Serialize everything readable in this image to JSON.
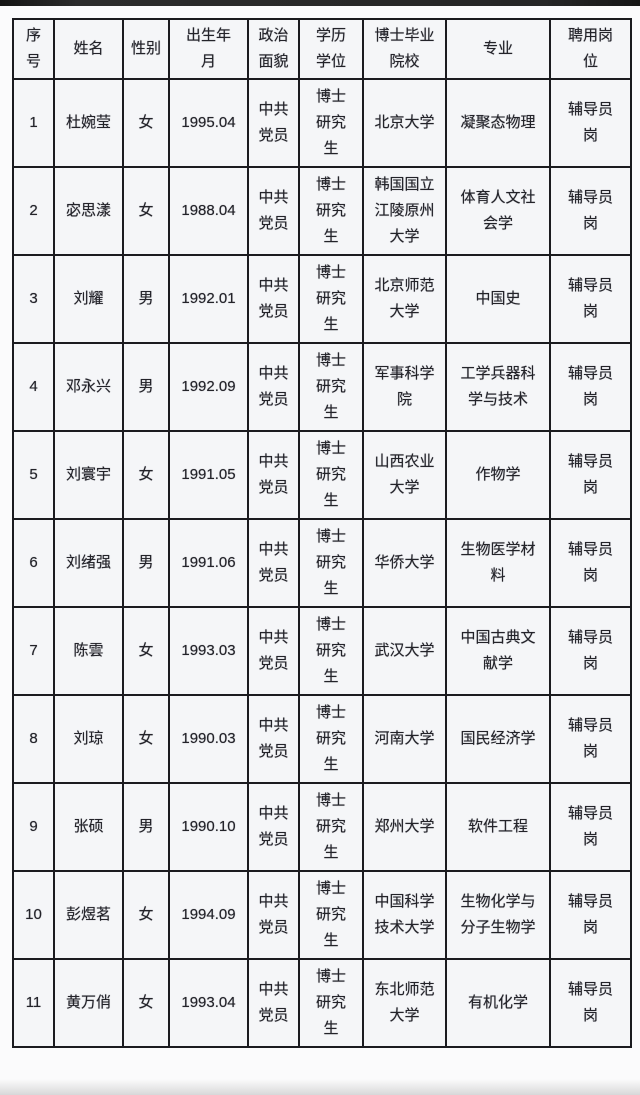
{
  "table": {
    "headers": [
      "序\n号",
      "姓名",
      "性别",
      "出生年\n月",
      "政治\n面貌",
      "学历\n学位",
      "博士毕业\n院校",
      "专业",
      "聘用岗\n位"
    ],
    "rows": [
      [
        "1",
        "杜婉莹",
        "女",
        "1995.04",
        "中共\n党员",
        "博士\n研究\n生",
        "北京大学",
        "凝聚态物理",
        "辅导员\n岗"
      ],
      [
        "2",
        "宓思漾",
        "女",
        "1988.04",
        "中共\n党员",
        "博士\n研究\n生",
        "韩国国立\n江陵原州\n大学",
        "体育人文社\n会学",
        "辅导员\n岗"
      ],
      [
        "3",
        "刘耀",
        "男",
        "1992.01",
        "中共\n党员",
        "博士\n研究\n生",
        "北京师范\n大学",
        "中国史",
        "辅导员\n岗"
      ],
      [
        "4",
        "邓永兴",
        "男",
        "1992.09",
        "中共\n党员",
        "博士\n研究\n生",
        "军事科学\n院",
        "工学兵器科\n学与技术",
        "辅导员\n岗"
      ],
      [
        "5",
        "刘寰宇",
        "女",
        "1991.05",
        "中共\n党员",
        "博士\n研究\n生",
        "山西农业\n大学",
        "作物学",
        "辅导员\n岗"
      ],
      [
        "6",
        "刘绪强",
        "男",
        "1991.06",
        "中共\n党员",
        "博士\n研究\n生",
        "华侨大学",
        "生物医学材\n料",
        "辅导员\n岗"
      ],
      [
        "7",
        "陈雲",
        "女",
        "1993.03",
        "中共\n党员",
        "博士\n研究\n生",
        "武汉大学",
        "中国古典文\n献学",
        "辅导员\n岗"
      ],
      [
        "8",
        "刘琼",
        "女",
        "1990.03",
        "中共\n党员",
        "博士\n研究\n生",
        "河南大学",
        "国民经济学",
        "辅导员\n岗"
      ],
      [
        "9",
        "张硕",
        "男",
        "1990.10",
        "中共\n党员",
        "博士\n研究\n生",
        "郑州大学",
        "软件工程",
        "辅导员\n岗"
      ],
      [
        "10",
        "彭煜茗",
        "女",
        "1994.09",
        "中共\n党员",
        "博士\n研究\n生",
        "中国科学\n技术大学",
        "生物化学与\n分子生物学",
        "辅导员\n岗"
      ],
      [
        "11",
        "黄万俏",
        "女",
        "1993.04",
        "中共\n党员",
        "博士\n研究\n生",
        "东北师范\n大学",
        "有机化学",
        "辅导员\n岗"
      ]
    ]
  },
  "colors": {
    "top_band": "#232323",
    "cell_background": "#f5f6f8",
    "border": "#1b1b1f",
    "text": "#232329"
  }
}
